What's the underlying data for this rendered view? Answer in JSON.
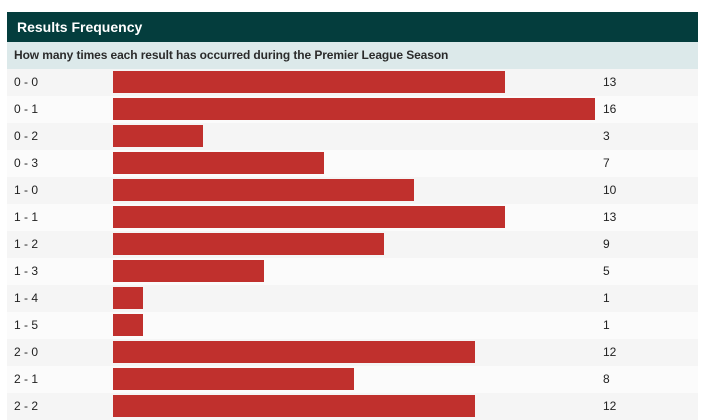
{
  "header": {
    "title": "Results Frequency",
    "subtitle": "How many times each result has occurred during the Premier League Season"
  },
  "colors": {
    "header_bg": "#043d3d",
    "subheader_bg": "#dce9ea",
    "bar": "#c0302d"
  },
  "chart_data": {
    "type": "bar",
    "orientation": "horizontal",
    "title": "Results Frequency",
    "subtitle": "How many times each result has occurred during the Premier League Season",
    "categories": [
      "0 - 0",
      "0 - 1",
      "0 - 2",
      "0 - 3",
      "1 - 0",
      "1 - 1",
      "1 - 2",
      "1 - 3",
      "1 - 4",
      "1 - 5",
      "2 - 0",
      "2 - 1",
      "2 - 2"
    ],
    "values": [
      13,
      16,
      3,
      7,
      10,
      13,
      9,
      5,
      1,
      1,
      12,
      8,
      12
    ],
    "xlim": [
      0,
      16
    ],
    "grid": false,
    "legend": "none"
  }
}
